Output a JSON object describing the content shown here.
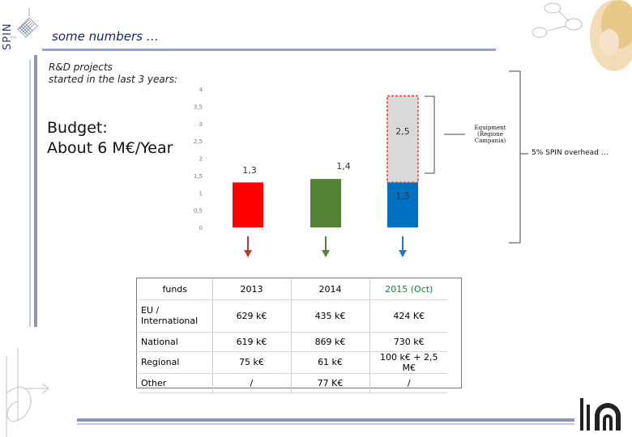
{
  "header": {
    "logo_text": "SPIN",
    "title": "some numbers …"
  },
  "subtitle": {
    "line1": "R&D projects",
    "line2": "started in the last 3 years:"
  },
  "budget": {
    "line1": "Budget:",
    "line2": "About 6 M€/Year"
  },
  "chart_data": {
    "type": "bar",
    "title": "",
    "xlabel": "",
    "ylabel": "",
    "ylim": [
      0,
      4
    ],
    "yticks": [
      "0",
      "0,5",
      "1",
      "1,5",
      "2",
      "2,5",
      "3",
      "3,5",
      "4"
    ],
    "grid": false,
    "categories": [
      "2013",
      "2014",
      "2015"
    ],
    "series": [
      {
        "values": [
          1.3,
          1.4,
          1.3
        ],
        "colors": [
          "#ff0000",
          "#548235",
          "#0070c0"
        ]
      },
      {
        "values": [
          0,
          0,
          2.5
        ],
        "colors": [
          "#d9d9d9",
          "#d9d9d9",
          "#d9d9d9"
        ],
        "outline": "#e0443a"
      }
    ],
    "data_labels": [
      "1,3",
      "1,4",
      "1,3",
      "2,5"
    ],
    "annotations": {
      "equipment": [
        "Equipment",
        "(Regione",
        "Campania)"
      ],
      "overhead": "5% SPIN overhead …"
    }
  },
  "table": {
    "header": [
      "funds",
      "2013",
      "2014",
      "2015 (Oct)"
    ],
    "rows": [
      [
        "EU / International",
        "629 k€",
        "435 k€",
        "424 K€"
      ],
      [
        "National",
        "619 k€",
        "869 k€",
        "730 k€"
      ],
      [
        "Regional",
        "75 k€",
        "61 k€",
        "100 k€ + 2,5 M€"
      ],
      [
        "Other",
        "/",
        "77 K€",
        "/"
      ]
    ]
  },
  "colors": {
    "title": "#1a1f6e",
    "rule": "#8e93b8",
    "bar_2013": "#ff0000",
    "bar_2014": "#548235",
    "bar_2015": "#0070c0",
    "bar_equipment": "#d9d9d9",
    "arrow_red": "#c0392b",
    "arrow_green": "#548235",
    "arrow_blue": "#2e75b6"
  }
}
